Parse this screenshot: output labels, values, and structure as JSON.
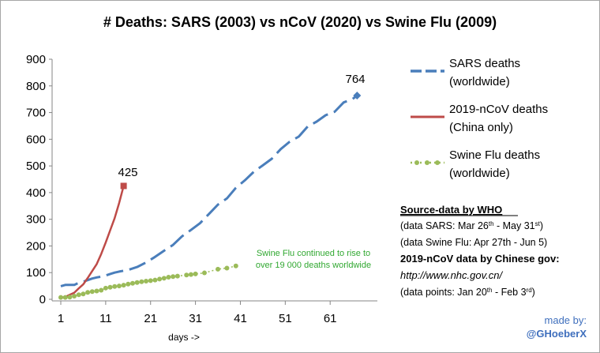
{
  "chart_data": {
    "type": "line",
    "title": "# Deaths: SARS (2003) vs nCoV (2020) vs Swine Flu (2009)",
    "xlabel": "days ->",
    "ylabel": "",
    "xlim": [
      1,
      68
    ],
    "ylim": [
      0,
      900
    ],
    "x_ticks": [
      1,
      11,
      21,
      31,
      41,
      51,
      61
    ],
    "y_ticks": [
      0,
      100,
      200,
      300,
      400,
      500,
      600,
      700,
      800,
      900
    ],
    "grid": false,
    "legend_position": "right",
    "series": [
      {
        "name": "SARS deaths (worldwide)",
        "legend_lines": [
          "SARS deaths",
          "(worldwide)"
        ],
        "color": "#4a7ebb",
        "style": "dashed",
        "x": [
          1,
          2,
          4,
          5,
          6,
          7,
          8,
          9,
          10,
          11,
          12,
          13,
          14,
          16,
          18,
          20,
          22,
          24,
          26,
          28,
          30,
          32,
          34,
          36,
          38,
          40,
          42,
          44,
          46,
          48,
          50,
          52,
          54,
          56,
          58,
          60,
          62,
          64,
          66,
          67
        ],
        "values": [
          49,
          54,
          54,
          62,
          66,
          72,
          78,
          82,
          85,
          89,
          95,
          100,
          104,
          110,
          121,
          138,
          159,
          182,
          204,
          236,
          260,
          285,
          320,
          355,
          378,
          418,
          446,
          478,
          502,
          527,
          563,
          591,
          610,
          648,
          666,
          690,
          703,
          738,
          751,
          764
        ],
        "end_label": "764",
        "end_marker": "diamond"
      },
      {
        "name": "2019-nCoV deaths (China only)",
        "legend_lines": [
          "2019-nCoV deaths",
          "(China only)"
        ],
        "color": "#be4b48",
        "style": "solid",
        "x": [
          1,
          2,
          3,
          4,
          5,
          6,
          7,
          8,
          9,
          10,
          11,
          12,
          13,
          14,
          15
        ],
        "values": [
          6,
          9,
          17,
          25,
          41,
          56,
          80,
          106,
          132,
          170,
          213,
          259,
          304,
          361,
          425
        ],
        "end_label": "425",
        "end_marker": "square"
      },
      {
        "name": "Swine Flu deaths (worldwide)",
        "legend_lines": [
          "Swine Flu deaths",
          "(worldwide)"
        ],
        "color": "#9bbb59",
        "style": "dotted-markers",
        "x": [
          1,
          2,
          3,
          4,
          5,
          6,
          7,
          8,
          9,
          10,
          11,
          12,
          13,
          14,
          15,
          16,
          17,
          18,
          19,
          20,
          21,
          22,
          23,
          24,
          25,
          26,
          27,
          29,
          30,
          31,
          33,
          36,
          38,
          40
        ],
        "values": [
          7,
          7,
          8,
          12,
          17,
          20,
          26,
          29,
          31,
          34,
          42,
          45,
          48,
          50,
          53,
          57,
          60,
          63,
          66,
          68,
          70,
          72,
          76,
          79,
          83,
          85,
          87,
          91,
          93,
          95,
          99,
          113,
          117,
          125
        ]
      }
    ],
    "annotation": [
      "Swine Flu continued to rise to",
      "over 19 000 deaths worldwide"
    ]
  },
  "source": {
    "title": "Source-data by WHO",
    "lines": [
      {
        "pre": "(data SARS: Mar 26",
        "sup1": "th",
        "mid": " - May 31",
        "sup2": "st",
        "post": ")"
      },
      {
        "pre": "(data Swine Flu: Apr 27th - Jun 5)",
        "sup1": "",
        "mid": "",
        "sup2": "",
        "post": ""
      }
    ],
    "ncov_title": "2019-nCoV data by Chinese gov:",
    "url": "http://www.nhc.gov.cn/",
    "ncov_points": {
      "pre": "(data points: Jan 20",
      "sup1": "th",
      "mid": " - Feb 3",
      "sup2": "rd",
      "post": ")"
    }
  },
  "credit": {
    "line1": "made by:",
    "line2": "@GHoeberX"
  }
}
